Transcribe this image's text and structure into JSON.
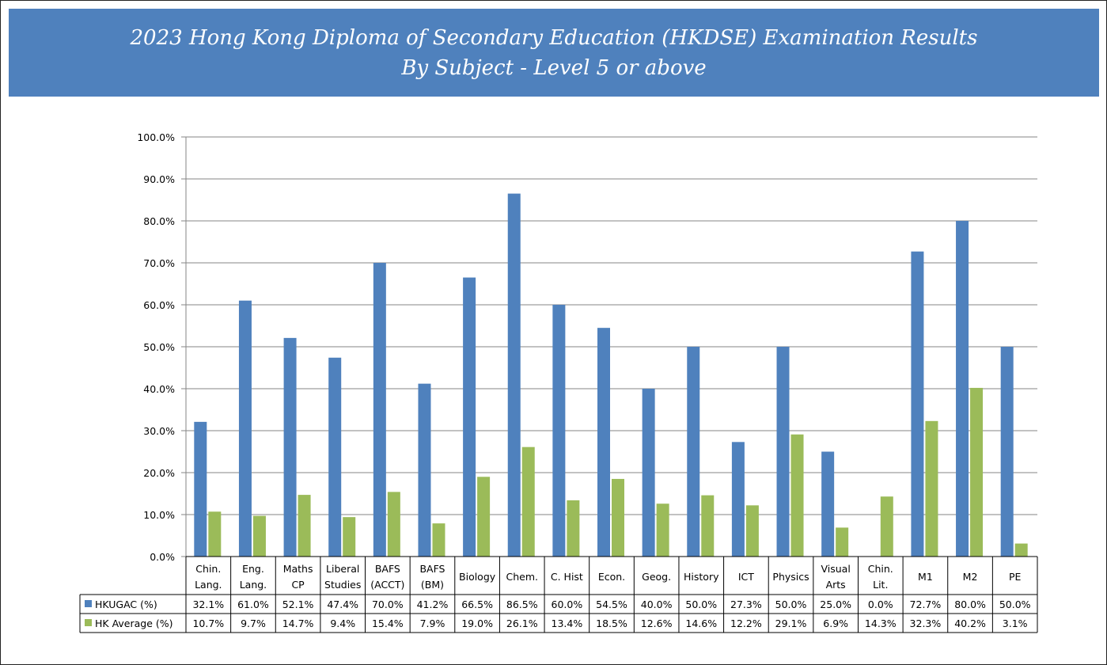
{
  "page": {
    "title_line1": "2023 Hong Kong Diploma of Secondary Education (HKDSE) Examination Results",
    "title_line2": "By Subject - Level 5 or above"
  },
  "chart_data": {
    "type": "bar",
    "title": "2023 Hong Kong Diploma of Secondary Education (HKDSE) Examination Results By Subject - Level 5 or above",
    "categories": [
      [
        "Chin.",
        "Lang."
      ],
      [
        "Eng.",
        "Lang."
      ],
      [
        "Maths",
        "CP"
      ],
      [
        "Liberal",
        "Studies"
      ],
      [
        "BAFS",
        "(ACCT)"
      ],
      [
        "BAFS",
        "(BM)"
      ],
      [
        "Biology"
      ],
      [
        "Chem."
      ],
      [
        "C. Hist"
      ],
      [
        "Econ."
      ],
      [
        "Geog."
      ],
      [
        "History"
      ],
      [
        "ICT"
      ],
      [
        "Physics"
      ],
      [
        "Visual",
        "Arts"
      ],
      [
        "Chin.",
        "Lit."
      ],
      [
        "M1"
      ],
      [
        "M2"
      ],
      [
        "PE"
      ]
    ],
    "series": [
      {
        "name": "HKUGAC (%)",
        "color": "#4f81bd",
        "values": [
          32.1,
          61.0,
          52.1,
          47.4,
          70.0,
          41.2,
          66.5,
          86.5,
          60.0,
          54.5,
          40.0,
          50.0,
          27.3,
          50.0,
          25.0,
          0.0,
          72.7,
          80.0,
          50.0
        ],
        "labels": [
          "32.1%",
          "61.0%",
          "52.1%",
          "47.4%",
          "70.0%",
          "41.2%",
          "66.5%",
          "86.5%",
          "60.0%",
          "54.5%",
          "40.0%",
          "50.0%",
          "27.3%",
          "50.0%",
          "25.0%",
          "0.0%",
          "72.7%",
          "80.0%",
          "50.0%"
        ]
      },
      {
        "name": "HK Average (%)",
        "color": "#9bbb59",
        "values": [
          10.7,
          9.7,
          14.7,
          9.4,
          15.4,
          7.9,
          19.0,
          26.1,
          13.4,
          18.5,
          12.6,
          14.6,
          12.2,
          29.1,
          6.9,
          14.3,
          32.3,
          40.2,
          3.1
        ],
        "labels": [
          "10.7%",
          "9.7%",
          "14.7%",
          "9.4%",
          "15.4%",
          "7.9%",
          "19.0%",
          "26.1%",
          "13.4%",
          "18.5%",
          "12.6%",
          "14.6%",
          "12.2%",
          "29.1%",
          "6.9%",
          "14.3%",
          "32.3%",
          "40.2%",
          "3.1%"
        ]
      }
    ],
    "ylim": [
      0,
      100
    ],
    "yticks": [
      "0.0%",
      "10.0%",
      "20.0%",
      "30.0%",
      "40.0%",
      "50.0%",
      "60.0%",
      "70.0%",
      "80.0%",
      "90.0%",
      "100.0%"
    ],
    "grid": true,
    "legend": "data-table"
  }
}
